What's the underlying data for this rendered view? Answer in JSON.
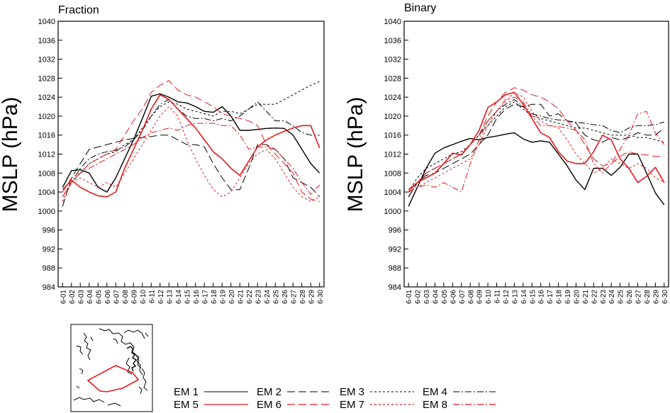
{
  "chart_data": [
    {
      "type": "line",
      "title": "Fraction",
      "ylabel": "MSLP (hPa)",
      "ylim": [
        984,
        1040
      ],
      "yticks": [
        984,
        988,
        992,
        996,
        1000,
        1004,
        1008,
        1012,
        1016,
        1020,
        1024,
        1028,
        1032,
        1036,
        1040
      ],
      "x": [
        "6-01",
        "6-02",
        "6-03",
        "6-04",
        "6-05",
        "6-06",
        "6-07",
        "6-08",
        "6-09",
        "6-10",
        "6-11",
        "6-12",
        "6-13",
        "6-14",
        "6-15",
        "6-16",
        "6-17",
        "6-18",
        "6-19",
        "6-20",
        "6-21",
        "6-22",
        "6-23",
        "6-24",
        "6-25",
        "6-26",
        "6-27",
        "6-28",
        "6-29",
        "6-30"
      ],
      "series": [
        {
          "name": "EM 1",
          "color": "#000000",
          "dash": "solid",
          "width": 1.4,
          "values": [
            1005,
            1008.5,
            1008.7,
            1008,
            1005,
            1004,
            1007,
            1011,
            1015,
            1019.5,
            1024.2,
            1024.7,
            1024,
            1023,
            1022.8,
            1022,
            1021,
            1020.8,
            1022,
            1020,
            1017,
            1017,
            1017.2,
            1017.4,
            1017.5,
            1017.4,
            1016,
            1013,
            1010,
            1008
          ]
        },
        {
          "name": "EM 2",
          "color": "#000000",
          "dash": "11,5",
          "width": 1,
          "values": [
            1001,
            1007,
            1010,
            1013,
            1013.5,
            1014,
            1014.5,
            1015,
            1015.3,
            1015.5,
            1015.7,
            1016,
            1016,
            1015,
            1014,
            1014,
            1013.5,
            1010,
            1007,
            1004.5,
            1004.5,
            1009,
            1014,
            1014,
            1013,
            1011,
            1007,
            1006,
            1005,
            1003
          ]
        },
        {
          "name": "EM 3",
          "color": "#000000",
          "dash": "3,3",
          "width": 1,
          "values": [
            1002,
            1006,
            1008,
            1010,
            1011,
            1012,
            1012.5,
            1014,
            1015,
            1017.5,
            1020,
            1022,
            1023,
            1022.5,
            1021.5,
            1021,
            1020.5,
            1020,
            1021,
            1021,
            1020.5,
            1021.5,
            1022.5,
            1022.5,
            1022.5,
            1023.5,
            1024.5,
            1025.5,
            1026.5,
            1027.3
          ]
        },
        {
          "name": "EM 4",
          "color": "#000000",
          "dash": "9,3,2,3",
          "width": 1,
          "values": [
            1003,
            1006,
            1009,
            1011,
            1012,
            1012.5,
            1012.8,
            1013.5,
            1015,
            1017,
            1020,
            1022.5,
            1023.5,
            1021.5,
            1020,
            1019.5,
            1019.5,
            1019,
            1019.5,
            1019,
            1020,
            1021.5,
            1023,
            1021,
            1019,
            1019,
            1018,
            1016.5,
            1016,
            1016
          ]
        },
        {
          "name": "EM 5",
          "color": "#e41a1c",
          "dash": "solid",
          "width": 1.6,
          "values": [
            1004.5,
            1006.5,
            1005,
            1004,
            1003.2,
            1003,
            1004,
            1009,
            1013,
            1017,
            1021.5,
            1024.5,
            1023.5,
            1021.5,
            1019.5,
            1017.5,
            1015,
            1012.5,
            1011,
            1009,
            1007.5,
            1010.5,
            1013.5,
            1015,
            1016,
            1016.8,
            1017.5,
            1018,
            1018,
            1013.3
          ]
        },
        {
          "name": "EM 6",
          "color": "#e41a1c",
          "dash": "11,5",
          "width": 1,
          "values": [
            1003,
            1006,
            1008,
            1010,
            1011,
            1012,
            1013,
            1016,
            1019,
            1021.5,
            1025,
            1026.5,
            1027.5,
            1025.5,
            1024.5,
            1024,
            1023,
            1022,
            1020.5,
            1020,
            1019.5,
            1019,
            1018,
            1014,
            1012,
            1010,
            1008,
            1004,
            1002.5,
            1002
          ]
        },
        {
          "name": "EM 7",
          "color": "#e41a1c",
          "dash": "3,3",
          "width": 1,
          "values": [
            1002,
            1006,
            1007,
            1006,
            1005,
            1006,
            1005,
            1008,
            1011,
            1014,
            1017,
            1020,
            1022,
            1020,
            1015,
            1011,
            1007.5,
            1004.5,
            1003,
            1004,
            1007,
            1010,
            1012,
            1013,
            1011,
            1008,
            1005,
            1003,
            1002,
            1003
          ]
        },
        {
          "name": "EM 8",
          "color": "#e41a1c",
          "dash": "9,3,2,3",
          "width": 1,
          "values": [
            1004,
            1007,
            1008,
            1009,
            1010,
            1011,
            1012,
            1013,
            1014,
            1015.5,
            1016.5,
            1017,
            1017.5,
            1017,
            1018,
            1018.5,
            1018.5,
            1018.5,
            1018,
            1018,
            1016,
            1013,
            1013.5,
            1013.5,
            1013,
            1011,
            1009,
            1006,
            1003.5,
            1005.5
          ]
        }
      ]
    },
    {
      "type": "line",
      "title": "Binary",
      "ylabel": "MSLP (hPa)",
      "ylim": [
        984,
        1040
      ],
      "yticks": [
        984,
        988,
        992,
        996,
        1000,
        1004,
        1008,
        1012,
        1016,
        1020,
        1024,
        1028,
        1032,
        1036,
        1040
      ],
      "x": [
        "6-01",
        "6-02",
        "6-03",
        "6-04",
        "6-05",
        "6-06",
        "6-07",
        "6-08",
        "6-09",
        "6-10",
        "6-11",
        "6-12",
        "6-13",
        "6-14",
        "6-15",
        "6-16",
        "6-17",
        "6-18",
        "6-19",
        "6-20",
        "6-21",
        "6-22",
        "6-23",
        "6-24",
        "6-25",
        "6-26",
        "6-27",
        "6-28",
        "6-29",
        "6-30"
      ],
      "series": [
        {
          "name": "EM 1",
          "color": "#000000",
          "dash": "solid",
          "width": 1.4,
          "values": [
            1001,
            1005,
            1009,
            1012.2,
            1013.3,
            1014,
            1014.7,
            1015.3,
            1015,
            1015.5,
            1015.8,
            1016.2,
            1016.5,
            1015.2,
            1014.5,
            1014.8,
            1014.5,
            1012,
            1009.5,
            1006.5,
            1004.5,
            1009,
            1009,
            1007.5,
            1009.2,
            1012,
            1012,
            1008,
            1003.8,
            1001.3
          ]
        },
        {
          "name": "EM 2",
          "color": "#000000",
          "dash": "11,5",
          "width": 1,
          "values": [
            1003,
            1006,
            1007.5,
            1008,
            1009,
            1010,
            1011,
            1012,
            1014,
            1016,
            1019.5,
            1021.5,
            1022.5,
            1022,
            1022.5,
            1022.5,
            1020,
            1020.5,
            1019,
            1018.5,
            1016,
            1015,
            1014.5,
            1015.5,
            1015,
            1015.5,
            1016.5,
            1016,
            1016,
            1017.5
          ]
        },
        {
          "name": "EM 3",
          "color": "#000000",
          "dash": "3,3",
          "width": 1,
          "values": [
            1004,
            1007,
            1009,
            1010,
            1011,
            1012,
            1012.5,
            1014,
            1016,
            1018,
            1020,
            1022,
            1023,
            1021.5,
            1020,
            1019.5,
            1019,
            1018.5,
            1018,
            1017.5,
            1017.5,
            1017,
            1016.5,
            1016,
            1016,
            1016,
            1015.5,
            1015.5,
            1015,
            1014.5
          ]
        },
        {
          "name": "EM 4",
          "color": "#000000",
          "dash": "9,3,2,3",
          "width": 1,
          "values": [
            1003,
            1006,
            1008,
            1009,
            1010,
            1011,
            1012,
            1014,
            1016,
            1019,
            1021,
            1022.5,
            1023.5,
            1022,
            1020.5,
            1020,
            1019.5,
            1019.2,
            1019,
            1018.7,
            1018.5,
            1018.2,
            1018,
            1017,
            1016.5,
            1017.5,
            1018,
            1018,
            1018.2,
            1018.8
          ]
        },
        {
          "name": "EM 5",
          "color": "#e41a1c",
          "dash": "solid",
          "width": 1.6,
          "values": [
            1004.5,
            1006,
            1007,
            1008,
            1010,
            1012.2,
            1011.8,
            1014,
            1017,
            1021.8,
            1023,
            1024.5,
            1025,
            1022.5,
            1019.5,
            1016.5,
            1015.5,
            1012.5,
            1010.5,
            1010,
            1010,
            1012.5,
            1016,
            1015,
            1011,
            1009,
            1006,
            1007.3,
            1009.2,
            1006
          ]
        },
        {
          "name": "EM 6",
          "color": "#e41a1c",
          "dash": "11,5",
          "width": 1,
          "values": [
            1004,
            1006,
            1008,
            1009,
            1010,
            1011,
            1012,
            1014,
            1016,
            1020,
            1023,
            1025,
            1026,
            1025.5,
            1024.5,
            1024,
            1023,
            1021.5,
            1019,
            1017,
            1014,
            1011,
            1009.5,
            1010,
            1011.5,
            1012.5,
            1012,
            1011.8,
            1011.5,
            1011.5
          ]
        },
        {
          "name": "EM 7",
          "color": "#e41a1c",
          "dash": "3,3",
          "width": 1,
          "values": [
            1004,
            1005,
            1006,
            1007,
            1008,
            1009,
            1010,
            1011,
            1014,
            1018,
            1021,
            1023,
            1025,
            1024,
            1021,
            1019,
            1018,
            1017.5,
            1015,
            1012,
            1010,
            1008,
            1009,
            1011,
            1010,
            1009,
            1010,
            1009,
            1007,
            1006
          ]
        },
        {
          "name": "EM 8",
          "color": "#e41a1c",
          "dash": "9,3,2,3",
          "width": 1,
          "values": [
            1004,
            1005,
            1005.5,
            1005,
            1006,
            1005,
            1004,
            1010,
            1015,
            1019,
            1021,
            1023.5,
            1024,
            1023,
            1020,
            1018,
            1018,
            1017.8,
            1017.5,
            1017,
            1015,
            1010,
            1008,
            1010,
            1013,
            1016,
            1020.5,
            1021,
            1016.5,
            1014
          ]
        }
      ]
    }
  ],
  "legend": {
    "entries": [
      {
        "name": "EM 1",
        "color": "#000000",
        "dash": "solid"
      },
      {
        "name": "EM 2",
        "color": "#000000",
        "dash": "11,5"
      },
      {
        "name": "EM 3",
        "color": "#000000",
        "dash": "3,3"
      },
      {
        "name": "EM 4",
        "color": "#000000",
        "dash": "9,3,2,3"
      },
      {
        "name": "EM 5",
        "color": "#e41a1c",
        "dash": "solid"
      },
      {
        "name": "EM 6",
        "color": "#e41a1c",
        "dash": "11,5"
      },
      {
        "name": "EM 7",
        "color": "#e41a1c",
        "dash": "3,3"
      },
      {
        "name": "EM 8",
        "color": "#e41a1c",
        "dash": "9,3,2,3"
      }
    ]
  },
  "inset_map": {
    "icon": "region-map-icon",
    "region_color": "#e41a1c"
  }
}
